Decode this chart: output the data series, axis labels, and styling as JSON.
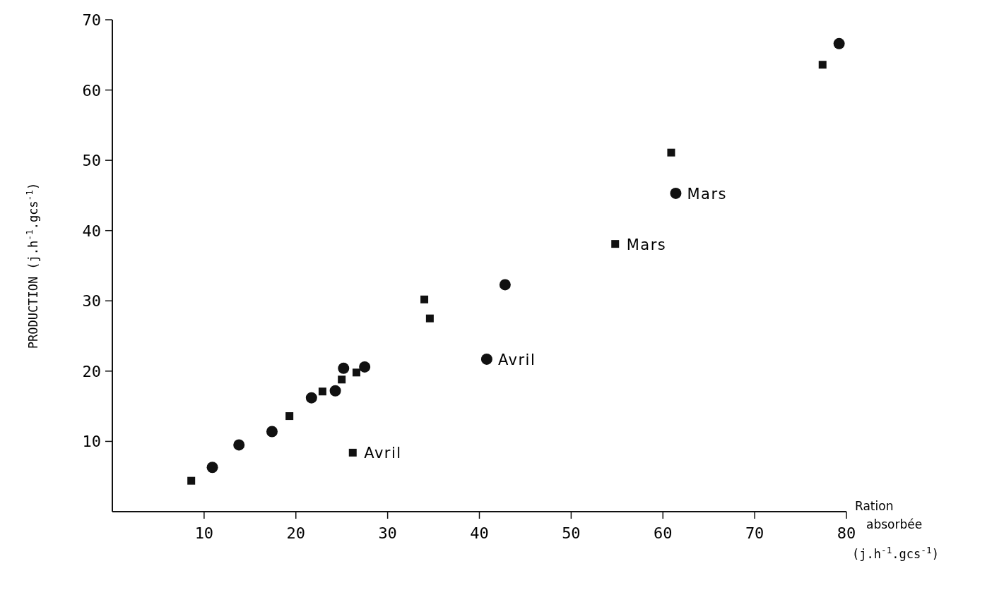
{
  "chart_data": {
    "type": "scatter",
    "xlabel": "Ration absorbée (j.h$^{-1}$.gcs$^{-1}$)",
    "ylabel": "PRODUCTION (j.h$^{-1}$.gcs$^{-1}$)",
    "xlim": [
      0,
      80
    ],
    "ylim": [
      0,
      70
    ],
    "xticks": [
      10,
      20,
      30,
      40,
      50,
      60,
      70,
      80
    ],
    "yticks": [
      10,
      20,
      30,
      40,
      50,
      60,
      70
    ],
    "grid": false,
    "series": [
      {
        "color": "#111111",
        "marker": "circle",
        "x": [
          10.9,
          13.8,
          17.4,
          21.7,
          24.3,
          25.2,
          27.5,
          40.8,
          42.8,
          61.4,
          79.2
        ],
        "values": [
          6.3,
          9.5,
          11.4,
          16.2,
          17.2,
          20.4,
          20.6,
          21.7,
          32.3,
          45.3,
          66.6
        ]
      },
      {
        "color": "#111111",
        "marker": "square",
        "x": [
          8.6,
          19.3,
          22.9,
          25.0,
          26.6,
          26.2,
          34.0,
          34.6,
          54.8,
          60.9,
          77.4
        ],
        "values": [
          4.4,
          13.6,
          17.1,
          18.8,
          19.8,
          8.4,
          30.2,
          27.5,
          38.1,
          51.1,
          63.6
        ]
      }
    ],
    "annotations": [
      {
        "text": "Mars",
        "x": 61.4,
        "y": 45.3
      },
      {
        "text": "Mars",
        "x": 54.8,
        "y": 38.1
      },
      {
        "text": "Avril",
        "x": 40.8,
        "y": 21.7
      },
      {
        "text": "Avril",
        "x": 26.2,
        "y": 8.4
      }
    ]
  }
}
